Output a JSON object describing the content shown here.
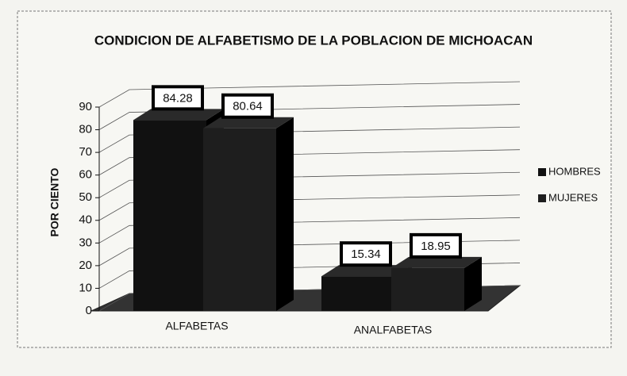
{
  "chart_data": {
    "type": "bar3d",
    "title": "CONDICION DE ALFABETISMO DE LA POBLACION DE MICHOACAN",
    "ylabel": "POR CIENTO",
    "categories": [
      "ALFABETAS",
      "ANALFABETAS"
    ],
    "series": [
      {
        "name": "HOMBRES",
        "color": "#111111",
        "values": [
          84.28,
          15.34
        ]
      },
      {
        "name": "MUJERES",
        "color": "#1e1e1e",
        "values": [
          80.64,
          18.95
        ]
      }
    ],
    "ylim": [
      0,
      90
    ],
    "yticks": [
      0,
      10,
      20,
      30,
      40,
      50,
      60,
      70,
      80,
      90
    ],
    "grid": true,
    "legend": "right"
  }
}
